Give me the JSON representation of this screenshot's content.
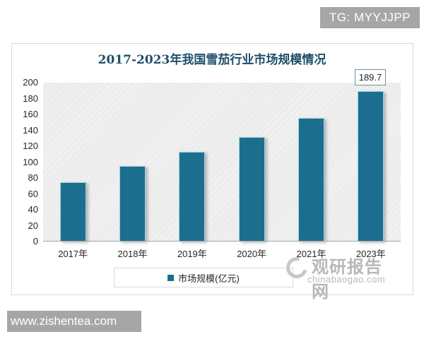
{
  "badges": {
    "top_right": "TG: MYYJJPP",
    "bottom_left": "www.zishentea.com"
  },
  "watermark": {
    "cn": "观研报告网",
    "en": "chinabaogao.com",
    "icon": "swirl-logo-icon"
  },
  "colors": {
    "bar": "#1c6e8f",
    "title": "#1f4e6b",
    "badge_bg": "#a6a6a6"
  },
  "chart_data": {
    "type": "bar",
    "title": "2017-2023年我国雪茄行业市场规模情况",
    "categories": [
      "2017年",
      "2018年",
      "2019年",
      "2020年",
      "2021年",
      "2023年"
    ],
    "series": [
      {
        "name": "市场规模(亿元)",
        "values": [
          74.5,
          95,
          113,
          131.5,
          155.5,
          189.7
        ]
      }
    ],
    "data_labels": [
      {
        "category": "2023年",
        "text": "189.7"
      }
    ],
    "xlabel": "",
    "ylabel": "",
    "ylim": [
      0,
      200
    ],
    "yticks": [
      "0",
      "20",
      "40",
      "60",
      "80",
      "100",
      "120",
      "140",
      "160",
      "180",
      "200"
    ],
    "grid": false,
    "legend_position": "bottom",
    "legend": [
      "市场规模(亿元)"
    ]
  }
}
